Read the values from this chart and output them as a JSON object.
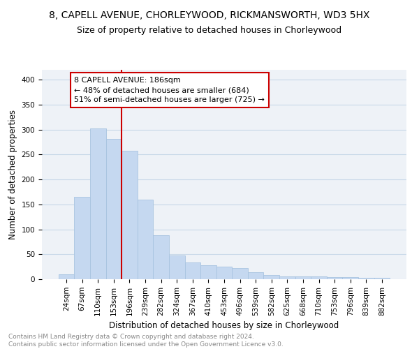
{
  "title": "8, CAPELL AVENUE, CHORLEYWOOD, RICKMANSWORTH, WD3 5HX",
  "subtitle": "Size of property relative to detached houses in Chorleywood",
  "xlabel": "Distribution of detached houses by size in Chorleywood",
  "ylabel": "Number of detached properties",
  "categories": [
    "24sqm",
    "67sqm",
    "110sqm",
    "153sqm",
    "196sqm",
    "239sqm",
    "282sqm",
    "324sqm",
    "367sqm",
    "410sqm",
    "453sqm",
    "496sqm",
    "539sqm",
    "582sqm",
    "625sqm",
    "668sqm",
    "710sqm",
    "753sqm",
    "796sqm",
    "839sqm",
    "882sqm"
  ],
  "values": [
    10,
    165,
    303,
    281,
    257,
    160,
    88,
    48,
    33,
    28,
    25,
    22,
    14,
    8,
    6,
    5,
    5,
    4,
    4,
    3,
    3
  ],
  "bar_color": "#c5d8f0",
  "bar_edgecolor": "#a8c4e0",
  "vline_color": "#cc0000",
  "vline_index": 4,
  "annotation_text": "8 CAPELL AVENUE: 186sqm\n← 48% of detached houses are smaller (684)\n51% of semi-detached houses are larger (725) →",
  "annotation_box_edgecolor": "#cc0000",
  "annotation_box_facecolor": "#ffffff",
  "ylim": [
    0,
    420
  ],
  "yticks": [
    0,
    50,
    100,
    150,
    200,
    250,
    300,
    350,
    400
  ],
  "grid_color": "#c8d8e8",
  "bg_color": "#eef2f7",
  "footer_text": "Contains HM Land Registry data © Crown copyright and database right 2024.\nContains public sector information licensed under the Open Government Licence v3.0.",
  "title_fontsize": 10,
  "subtitle_fontsize": 9,
  "axis_label_fontsize": 8.5,
  "tick_fontsize": 7.5,
  "annotation_fontsize": 8,
  "footer_fontsize": 6.5
}
